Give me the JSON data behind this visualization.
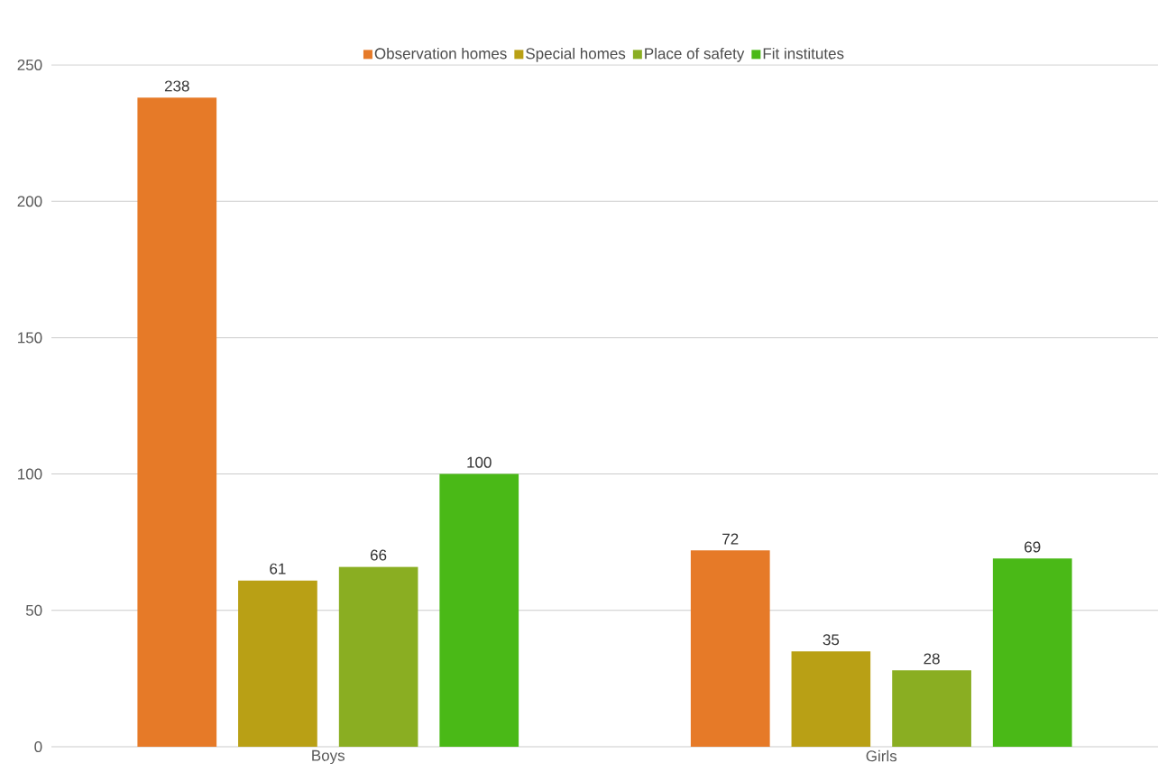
{
  "chart_data": {
    "type": "bar",
    "categories": [
      "Boys",
      "Girls"
    ],
    "series": [
      {
        "name": "Observation homes",
        "color": "#e67a28",
        "values": [
          238,
          72
        ]
      },
      {
        "name": "Special homes",
        "color": "#b9a015",
        "values": [
          61,
          35
        ]
      },
      {
        "name": "Place of safety",
        "color": "#8aae22",
        "values": [
          66,
          28
        ]
      },
      {
        "name": "Fit institutes",
        "color": "#4ab917",
        "values": [
          100,
          69
        ]
      }
    ],
    "ylim": [
      0,
      250
    ],
    "yticks": [
      0,
      50,
      100,
      150,
      200,
      250
    ],
    "grid": "y",
    "legend": "top",
    "data_labels": true
  }
}
